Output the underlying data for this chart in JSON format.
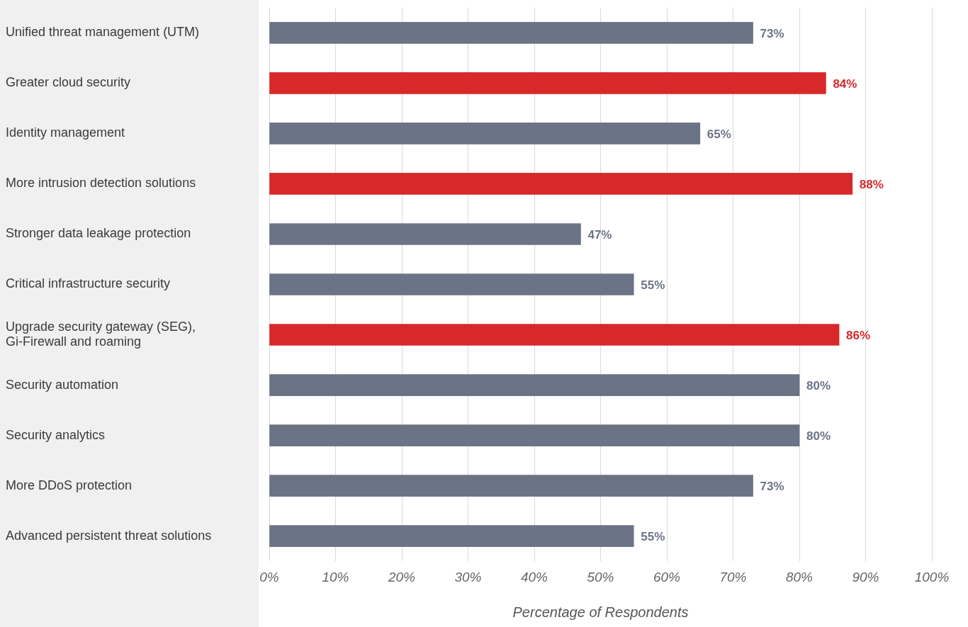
{
  "chart_data": {
    "type": "bar",
    "orientation": "horizontal",
    "xlabel": "Percentage of Respondents",
    "categories": [
      "Unified threat management (UTM)",
      "Greater cloud security",
      "Identity management",
      "More intrusion detection solutions",
      "Stronger data leakage protection",
      "Critical infrastructure security",
      "Upgrade security gateway (SEG), Gi-Firewall and roaming",
      "Security automation",
      "Security analytics",
      "More DDoS protection",
      "Advanced persistent threat solutions"
    ],
    "values": [
      73,
      84,
      65,
      88,
      47,
      55,
      86,
      80,
      80,
      73,
      55
    ],
    "colors": [
      "#6b7386",
      "#d7282a",
      "#6b7386",
      "#d7282a",
      "#6b7386",
      "#6b7386",
      "#d7282a",
      "#6b7386",
      "#6b7386",
      "#6b7386",
      "#6b7386"
    ],
    "value_labels": [
      "73%",
      "84%",
      "65%",
      "88%",
      "47%",
      "55%",
      "86%",
      "80%",
      "80%",
      "73%",
      "55%"
    ],
    "xlim": [
      0,
      100
    ],
    "xticks": [
      {
        "value": 0,
        "label": "0%"
      },
      {
        "value": 10,
        "label": "10%"
      },
      {
        "value": 20,
        "label": "20%"
      },
      {
        "value": 30,
        "label": "30%"
      },
      {
        "value": 40,
        "label": "40%"
      },
      {
        "value": 50,
        "label": "50%"
      },
      {
        "value": 60,
        "label": "60%"
      },
      {
        "value": 70,
        "label": "70%"
      },
      {
        "value": 80,
        "label": "80%"
      },
      {
        "value": 90,
        "label": "90%"
      },
      {
        "value": 100,
        "label": "100%"
      }
    ],
    "grid": "x",
    "legend": false
  }
}
